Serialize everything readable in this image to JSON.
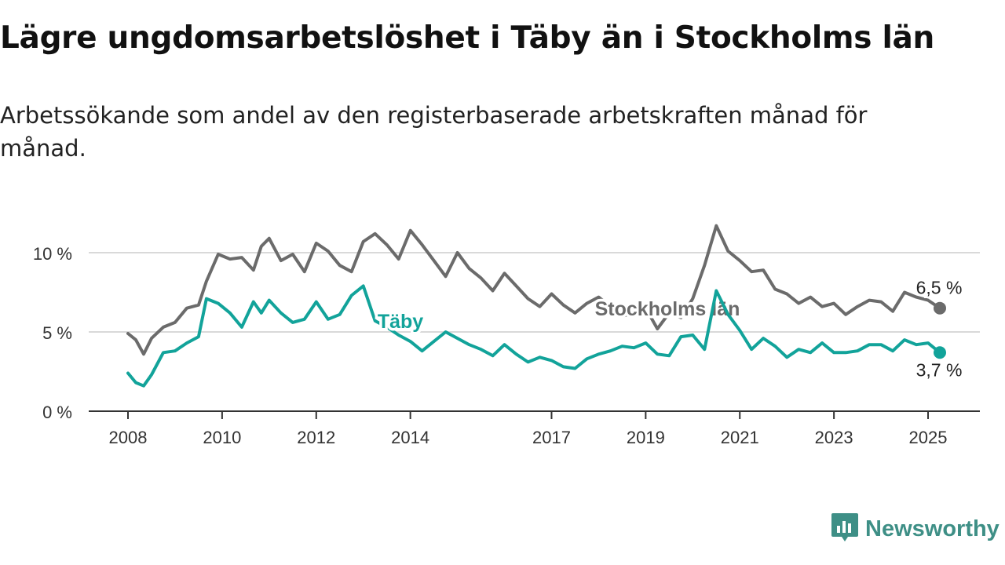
{
  "header": {
    "title": "Lägre ungdomsarbetslöshet i Täby än i Stockholms län",
    "subtitle": "Arbetssökande som andel av den registerbaserade arbetskraften månad för månad."
  },
  "brand": {
    "name": "Newsworthy",
    "icon": "newsworthy-logo-icon",
    "color": "#3e8f86"
  },
  "chart_data": {
    "type": "line",
    "x_ticks": [
      "2008",
      "2010",
      "2012",
      "2014",
      "2017",
      "2019",
      "2021",
      "2023",
      "2025"
    ],
    "y_ticks": [
      "0 %",
      "5 %",
      "10 %"
    ],
    "ylim": [
      0,
      12
    ],
    "xlim": [
      "2008-01",
      "2025-04"
    ],
    "grid": true,
    "series": [
      {
        "name": "Stockholms län",
        "color": "#6b6b6b",
        "end_label": "6,5 %",
        "points": [
          [
            "2008-01",
            4.9
          ],
          [
            "2008-03",
            4.5
          ],
          [
            "2008-05",
            3.6
          ],
          [
            "2008-07",
            4.6
          ],
          [
            "2008-10",
            5.3
          ],
          [
            "2009-01",
            5.6
          ],
          [
            "2009-04",
            6.5
          ],
          [
            "2009-07",
            6.7
          ],
          [
            "2009-09",
            8.2
          ],
          [
            "2009-12",
            9.9
          ],
          [
            "2010-03",
            9.6
          ],
          [
            "2010-06",
            9.7
          ],
          [
            "2010-09",
            8.9
          ],
          [
            "2010-11",
            10.4
          ],
          [
            "2011-01",
            10.9
          ],
          [
            "2011-04",
            9.5
          ],
          [
            "2011-07",
            9.9
          ],
          [
            "2011-10",
            8.8
          ],
          [
            "2012-01",
            10.6
          ],
          [
            "2012-04",
            10.1
          ],
          [
            "2012-07",
            9.2
          ],
          [
            "2012-10",
            8.8
          ],
          [
            "2013-01",
            10.7
          ],
          [
            "2013-04",
            11.2
          ],
          [
            "2013-07",
            10.5
          ],
          [
            "2013-10",
            9.6
          ],
          [
            "2014-01",
            11.4
          ],
          [
            "2014-04",
            10.5
          ],
          [
            "2014-07",
            9.5
          ],
          [
            "2014-10",
            8.5
          ],
          [
            "2015-01",
            10.0
          ],
          [
            "2015-04",
            9.0
          ],
          [
            "2015-07",
            8.4
          ],
          [
            "2015-10",
            7.6
          ],
          [
            "2016-01",
            8.7
          ],
          [
            "2016-04",
            7.9
          ],
          [
            "2016-07",
            7.1
          ],
          [
            "2016-10",
            6.6
          ],
          [
            "2017-01",
            7.4
          ],
          [
            "2017-04",
            6.7
          ],
          [
            "2017-07",
            6.2
          ],
          [
            "2017-10",
            6.8
          ],
          [
            "2018-01",
            7.2
          ],
          [
            "2018-04",
            6.6
          ],
          [
            "2018-07",
            6.0
          ],
          [
            "2018-10",
            6.2
          ],
          [
            "2019-01",
            6.5
          ],
          [
            "2019-04",
            5.2
          ],
          [
            "2019-07",
            6.2
          ],
          [
            "2019-10",
            5.9
          ],
          [
            "2020-01",
            7.1
          ],
          [
            "2020-04",
            9.2
          ],
          [
            "2020-07",
            11.7
          ],
          [
            "2020-10",
            10.1
          ],
          [
            "2021-01",
            9.5
          ],
          [
            "2021-04",
            8.8
          ],
          [
            "2021-07",
            8.9
          ],
          [
            "2021-10",
            7.7
          ],
          [
            "2022-01",
            7.4
          ],
          [
            "2022-04",
            6.8
          ],
          [
            "2022-07",
            7.2
          ],
          [
            "2022-10",
            6.6
          ],
          [
            "2023-01",
            6.8
          ],
          [
            "2023-04",
            6.1
          ],
          [
            "2023-07",
            6.6
          ],
          [
            "2023-10",
            7.0
          ],
          [
            "2024-01",
            6.9
          ],
          [
            "2024-04",
            6.3
          ],
          [
            "2024-07",
            7.5
          ],
          [
            "2024-10",
            7.2
          ],
          [
            "2025-01",
            7.0
          ],
          [
            "2025-04",
            6.5
          ]
        ]
      },
      {
        "name": "Täby",
        "color": "#12a39a",
        "end_label": "3,7 %",
        "points": [
          [
            "2008-01",
            2.4
          ],
          [
            "2008-03",
            1.8
          ],
          [
            "2008-05",
            1.6
          ],
          [
            "2008-07",
            2.3
          ],
          [
            "2008-10",
            3.7
          ],
          [
            "2009-01",
            3.8
          ],
          [
            "2009-04",
            4.3
          ],
          [
            "2009-07",
            4.7
          ],
          [
            "2009-09",
            7.1
          ],
          [
            "2009-12",
            6.8
          ],
          [
            "2010-03",
            6.2
          ],
          [
            "2010-06",
            5.3
          ],
          [
            "2010-09",
            6.9
          ],
          [
            "2010-11",
            6.2
          ],
          [
            "2011-01",
            7.0
          ],
          [
            "2011-04",
            6.2
          ],
          [
            "2011-07",
            5.6
          ],
          [
            "2011-10",
            5.8
          ],
          [
            "2012-01",
            6.9
          ],
          [
            "2012-04",
            5.8
          ],
          [
            "2012-07",
            6.1
          ],
          [
            "2012-10",
            7.3
          ],
          [
            "2013-01",
            7.9
          ],
          [
            "2013-04",
            5.7
          ],
          [
            "2013-07",
            5.3
          ],
          [
            "2013-10",
            4.8
          ],
          [
            "2014-01",
            4.4
          ],
          [
            "2014-04",
            3.8
          ],
          [
            "2014-07",
            4.4
          ],
          [
            "2014-10",
            5.0
          ],
          [
            "2015-01",
            4.6
          ],
          [
            "2015-04",
            4.2
          ],
          [
            "2015-07",
            3.9
          ],
          [
            "2015-10",
            3.5
          ],
          [
            "2016-01",
            4.2
          ],
          [
            "2016-04",
            3.6
          ],
          [
            "2016-07",
            3.1
          ],
          [
            "2016-10",
            3.4
          ],
          [
            "2017-01",
            3.2
          ],
          [
            "2017-04",
            2.8
          ],
          [
            "2017-07",
            2.7
          ],
          [
            "2017-10",
            3.3
          ],
          [
            "2018-01",
            3.6
          ],
          [
            "2018-04",
            3.8
          ],
          [
            "2018-07",
            4.1
          ],
          [
            "2018-10",
            4.0
          ],
          [
            "2019-01",
            4.3
          ],
          [
            "2019-04",
            3.6
          ],
          [
            "2019-07",
            3.5
          ],
          [
            "2019-10",
            4.7
          ],
          [
            "2020-01",
            4.8
          ],
          [
            "2020-04",
            3.9
          ],
          [
            "2020-07",
            7.6
          ],
          [
            "2020-10",
            6.1
          ],
          [
            "2021-01",
            5.1
          ],
          [
            "2021-04",
            3.9
          ],
          [
            "2021-07",
            4.6
          ],
          [
            "2021-10",
            4.1
          ],
          [
            "2022-01",
            3.4
          ],
          [
            "2022-04",
            3.9
          ],
          [
            "2022-07",
            3.7
          ],
          [
            "2022-10",
            4.3
          ],
          [
            "2023-01",
            3.7
          ],
          [
            "2023-04",
            3.7
          ],
          [
            "2023-07",
            3.8
          ],
          [
            "2023-10",
            4.2
          ],
          [
            "2024-01",
            4.2
          ],
          [
            "2024-04",
            3.8
          ],
          [
            "2024-07",
            4.5
          ],
          [
            "2024-10",
            4.2
          ],
          [
            "2025-01",
            4.3
          ],
          [
            "2025-04",
            3.7
          ]
        ]
      }
    ]
  }
}
